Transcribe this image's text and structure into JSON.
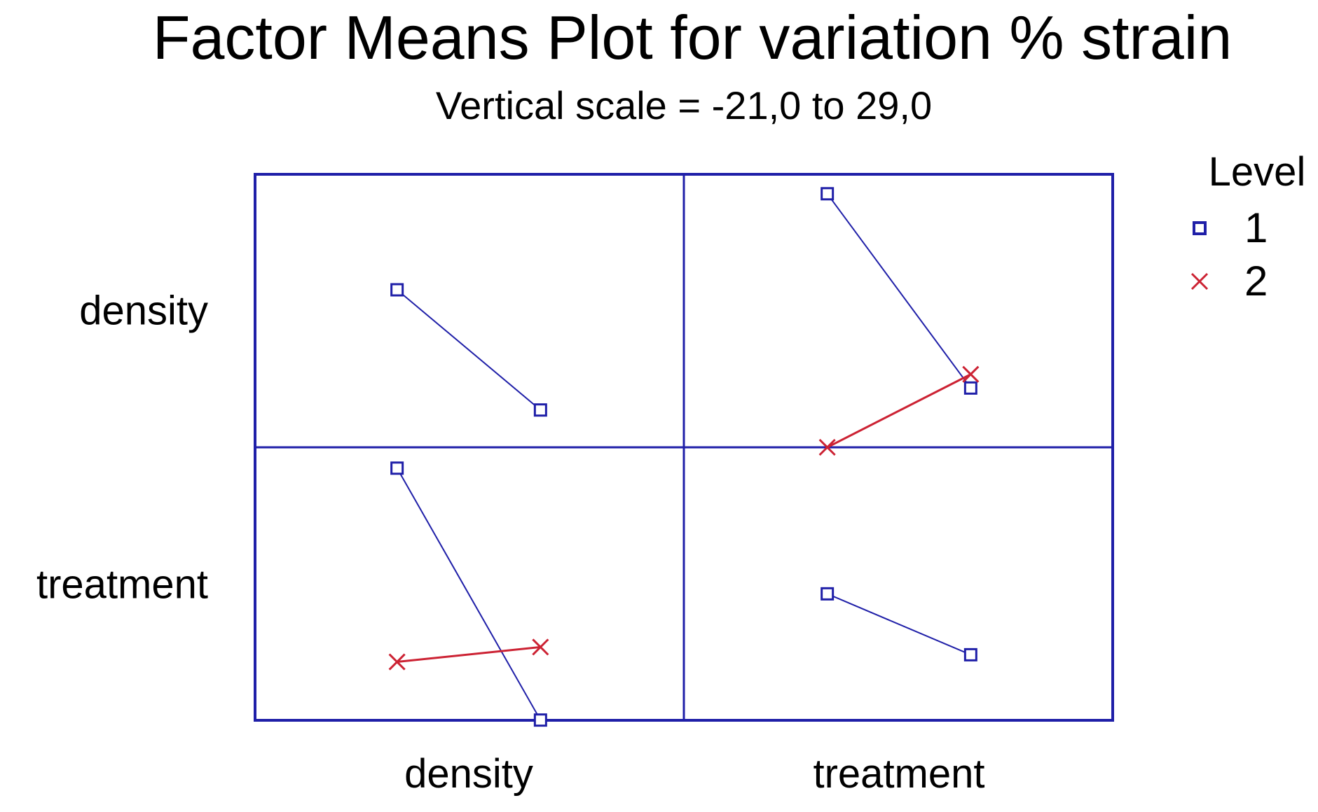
{
  "title": "Factor Means Plot for variation % strain",
  "subtitle": "Vertical scale = -21,0 to 29,0",
  "row_labels": [
    "density",
    "treatment"
  ],
  "col_labels": [
    "density",
    "treatment"
  ],
  "legend": {
    "title": "Level",
    "items": [
      {
        "label": "1",
        "marker": "square"
      },
      {
        "label": "2",
        "marker": "x"
      }
    ]
  },
  "colors": {
    "frame": "#1f1fa8",
    "level1": "#1f1fa8",
    "level2": "#cc2233",
    "text": "#000000",
    "background": "#ffffff"
  },
  "chart_data": {
    "type": "line",
    "title": "Factor Means Plot for variation % strain",
    "subtitle": "Vertical scale = -21,0 to 29,0",
    "layout": "2x2 factor-means panel matrix; rows = factors (density, treatment), columns = factors (density, treatment); each panel plots means at factor levels 1 and 2",
    "ylim": [
      -21.0,
      29.0
    ],
    "x_levels": [
      1,
      2
    ],
    "grid": "off",
    "legend_position": "top-right",
    "panels": [
      {
        "row": "density",
        "col": "density",
        "series": [
          {
            "name": "Level 1",
            "marker": "square",
            "values": [
              7.7,
              -14.2
            ]
          }
        ]
      },
      {
        "row": "density",
        "col": "treatment",
        "series": [
          {
            "name": "Level 1",
            "marker": "square",
            "values": [
              25.2,
              -10.2
            ]
          },
          {
            "name": "Level 2",
            "marker": "x",
            "values": [
              -21.0,
              -7.7
            ]
          }
        ]
      },
      {
        "row": "treatment",
        "col": "density",
        "series": [
          {
            "name": "Level 1",
            "marker": "square",
            "values": [
              25.2,
              -20.7
            ]
          },
          {
            "name": "Level 2",
            "marker": "x",
            "values": [
              -10.1,
              -7.4
            ]
          }
        ]
      },
      {
        "row": "treatment",
        "col": "treatment",
        "series": [
          {
            "name": "Level 1",
            "marker": "square",
            "values": [
              2.3,
              -8.8
            ]
          }
        ]
      }
    ]
  }
}
